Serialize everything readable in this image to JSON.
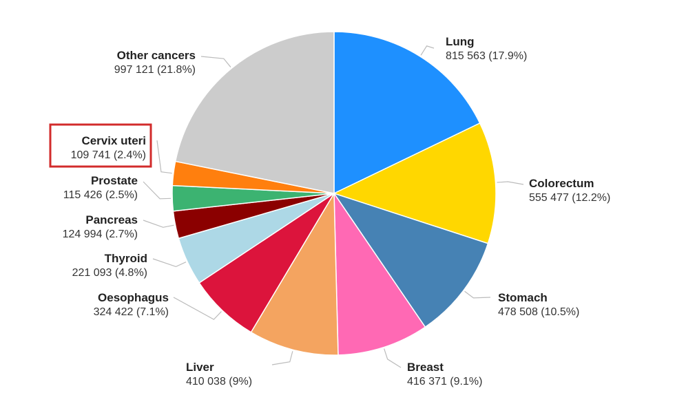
{
  "chart_data": {
    "type": "pie",
    "title": "",
    "start": "12-o'clock",
    "direction": "clockwise",
    "highlighted": "Cervix uteri",
    "slices": [
      {
        "name": "Lung",
        "value_text": "815 563 (17.9%)",
        "value": 815563,
        "percent": 17.9,
        "color": "#1e90ff"
      },
      {
        "name": "Colorectum",
        "value_text": "555 477 (12.2%)",
        "value": 555477,
        "percent": 12.2,
        "color": "#ffd700"
      },
      {
        "name": "Stomach",
        "value_text": "478 508 (10.5%)",
        "value": 478508,
        "percent": 10.5,
        "color": "#4682b4"
      },
      {
        "name": "Breast",
        "value_text": "416 371 (9.1%)",
        "value": 416371,
        "percent": 9.1,
        "color": "#ff69b4"
      },
      {
        "name": "Liver",
        "value_text": "410 038 (9%)",
        "value": 410038,
        "percent": 9.0,
        "color": "#f4a460"
      },
      {
        "name": "Oesophagus",
        "value_text": "324 422 (7.1%)",
        "value": 324422,
        "percent": 7.1,
        "color": "#dc143c"
      },
      {
        "name": "Thyroid",
        "value_text": "221 093 (4.8%)",
        "value": 221093,
        "percent": 4.8,
        "color": "#add8e6"
      },
      {
        "name": "Pancreas",
        "value_text": "124 994 (2.7%)",
        "value": 124994,
        "percent": 2.7,
        "color": "#8b0000"
      },
      {
        "name": "Prostate",
        "value_text": "115 426 (2.5%)",
        "value": 115426,
        "percent": 2.5,
        "color": "#3cb371"
      },
      {
        "name": "Cervix uteri",
        "value_text": "109 741 (2.4%)",
        "value": 109741,
        "percent": 2.4,
        "color": "#ff7f0e"
      },
      {
        "name": "Other cancers",
        "value_text": "997 121 (21.8%)",
        "value": 997121,
        "percent": 21.8,
        "color": "#cccccc"
      }
    ]
  }
}
